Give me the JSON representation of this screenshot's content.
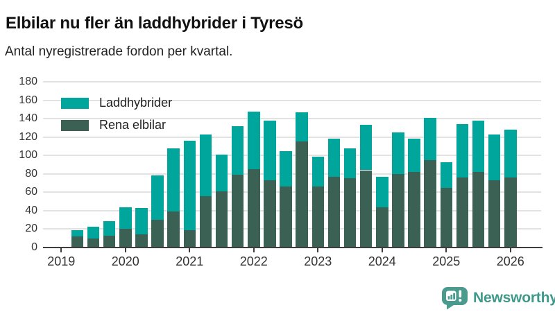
{
  "header": {
    "title": "Elbilar nu fler än laddhybrider i Tyresö",
    "subtitle": "Antal nyregistrerade fordon per kvartal."
  },
  "footer": {
    "brand": "Newsworthy"
  },
  "colors": {
    "laddhybrider": "#00a59c",
    "rena-elbilar": "#3b6054",
    "grid": "#e2e2e2",
    "axis": "#3d3d3d",
    "title-text": "#111111",
    "label-text": "#333333",
    "logo-teal": "#3e998c"
  },
  "chart_data": {
    "type": "bar",
    "stacked": true,
    "title": "Elbilar nu fler än laddhybrider i Tyresö",
    "subtitle": "Antal nyregistrerade fordon per kvartal.",
    "xlabel": "",
    "ylabel": "",
    "ylim": [
      0,
      180
    ],
    "yticks": [
      0,
      20,
      40,
      60,
      80,
      100,
      120,
      140,
      160,
      180
    ],
    "xticks": [
      "2019",
      "2020",
      "2021",
      "2022",
      "2023",
      "2024",
      "2025",
      "2026"
    ],
    "grid": "horizontal",
    "legend_position": "top-left-inside",
    "categories": [
      "2019 Q2",
      "2019 Q3",
      "2019 Q4",
      "2020 Q1",
      "2020 Q2",
      "2020 Q3",
      "2020 Q4",
      "2021 Q1",
      "2021 Q2",
      "2021 Q3",
      "2021 Q4",
      "2022 Q1",
      "2022 Q2",
      "2022 Q3",
      "2022 Q4",
      "2023 Q1",
      "2023 Q2",
      "2023 Q3",
      "2023 Q4",
      "2024 Q1",
      "2024 Q2",
      "2024 Q3",
      "2024 Q4",
      "2025 Q1",
      "2025 Q2",
      "2025 Q3",
      "2025 Q4",
      "2026 Q1"
    ],
    "series": [
      {
        "name": "Laddhybrider",
        "color": "#00a59c",
        "values": [
          7,
          13,
          16,
          24,
          29,
          48,
          69,
          97,
          67,
          40,
          53,
          63,
          65,
          39,
          32,
          33,
          41,
          33,
          49,
          33,
          45,
          36,
          46,
          28,
          58,
          56,
          50,
          52
        ]
      },
      {
        "name": "Rena elbilar",
        "color": "#3b6054",
        "values": [
          12,
          10,
          13,
          20,
          14,
          30,
          39,
          19,
          56,
          61,
          79,
          85,
          73,
          66,
          115,
          66,
          77,
          75,
          84,
          44,
          80,
          82,
          95,
          65,
          76,
          82,
          73,
          76
        ]
      }
    ],
    "totals": [
      19,
      23,
      29,
      44,
      43,
      78,
      108,
      116,
      123,
      101,
      132,
      148,
      138,
      105,
      147,
      99,
      118,
      108,
      133,
      77,
      125,
      118,
      141,
      93,
      134,
      138,
      123,
      128
    ]
  }
}
